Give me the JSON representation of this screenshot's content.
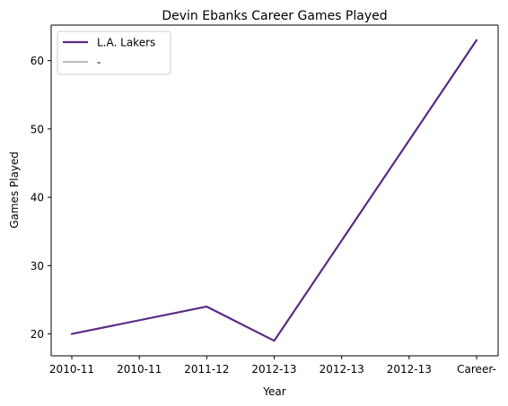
{
  "chart_data": {
    "type": "line",
    "title": "Devin Ebanks Career Games Played",
    "xlabel": "Year",
    "ylabel": "Games Played",
    "categories": [
      "2010-11",
      "2010-11",
      "2011-12",
      "2012-13",
      "2012-13",
      "2012-13",
      "Career-"
    ],
    "yticks": [
      20,
      30,
      40,
      50,
      60
    ],
    "ylim": [
      16.8,
      65.2
    ],
    "grid": false,
    "legend_position": "top-left",
    "series": [
      {
        "name": "L.A. Lakers",
        "color": "#582c83",
        "points": [
          {
            "x": "2010-11",
            "y": 20
          },
          {
            "x": "2011-12",
            "y": 24
          },
          {
            "x": "2012-13",
            "y": 19
          },
          {
            "x": "Career-",
            "y": 63
          }
        ]
      },
      {
        "name": "-",
        "color": "#c0c0c0",
        "points": []
      }
    ]
  }
}
